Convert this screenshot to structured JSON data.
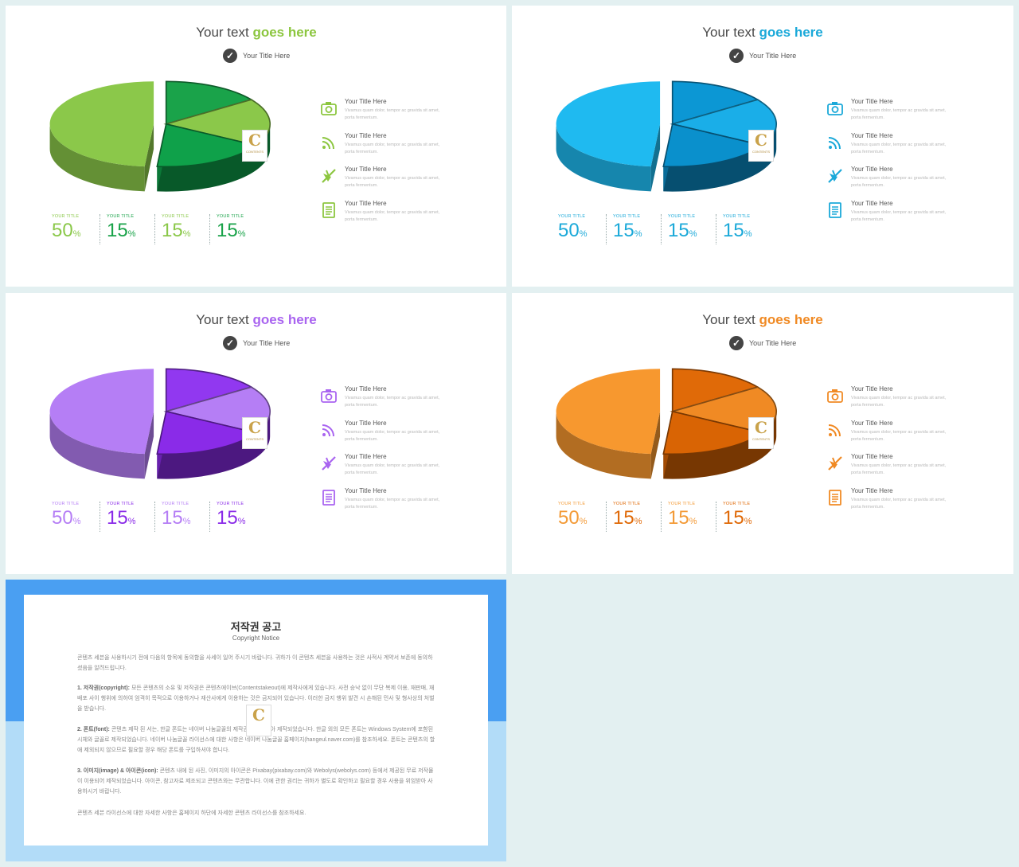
{
  "slides": [
    {
      "title_prefix": "Your text ",
      "title_highlight": "goes here",
      "subtitle": "Your Title Here",
      "accent": "#8cc63f",
      "colors": {
        "big": "#8bc84a",
        "s1": "#1aa34a",
        "s2": "#8bc84a",
        "s3": "#0fa14a"
      },
      "stats": [
        {
          "label": "YOUR TITLE",
          "value": "50",
          "unit": "%",
          "color": "#8bc84a"
        },
        {
          "label": "YOUR TITLE",
          "value": "15",
          "unit": "%",
          "color": "#1aa34a"
        },
        {
          "label": "YOUR TITLE",
          "value": "15",
          "unit": "%",
          "color": "#8bc84a"
        },
        {
          "label": "YOUR TITLE",
          "value": "15",
          "unit": "%",
          "color": "#1aa34a"
        }
      ],
      "items": [
        {
          "icon": "camera-icon",
          "title": "Your Title Here",
          "desc": "Vivamus quam dolor, tempor ac gravida sit amet, porta fermentum."
        },
        {
          "icon": "rss-icon",
          "title": "Your Title Here",
          "desc": "Vivamus quam dolor, tempor ac gravida sit amet, porta fermentum."
        },
        {
          "icon": "plane-icon",
          "title": "Your Title Here",
          "desc": "Vivamus quam dolor, tempor ac gravida sit amet, porta fermentum."
        },
        {
          "icon": "document-icon",
          "title": "Your Title Here",
          "desc": "Vivamus quam dolor, tempor ac gravida sit amet, porta fermentum."
        }
      ]
    },
    {
      "title_prefix": "Your text ",
      "title_highlight": "goes here",
      "subtitle": "Your Title Here",
      "accent": "#1ba9d9",
      "colors": {
        "big": "#1fbaf0",
        "s1": "#0c97d4",
        "s2": "#1aaee8",
        "s3": "#0a90cc"
      },
      "stats": [
        {
          "label": "YOUR TITLE",
          "value": "50",
          "unit": "%",
          "color": "#1ba9d9"
        },
        {
          "label": "YOUR TITLE",
          "value": "15",
          "unit": "%",
          "color": "#1ba9d9"
        },
        {
          "label": "YOUR TITLE",
          "value": "15",
          "unit": "%",
          "color": "#1ba9d9"
        },
        {
          "label": "YOUR TITLE",
          "value": "15",
          "unit": "%",
          "color": "#1ba9d9"
        }
      ],
      "items": [
        {
          "icon": "camera-icon",
          "title": "Your Title Here",
          "desc": "Vivamus quam dolor, tempor ac gravida sit amet, porta fermentum."
        },
        {
          "icon": "rss-icon",
          "title": "Your Title Here",
          "desc": "Vivamus quam dolor, tempor ac gravida sit amet, porta fermentum."
        },
        {
          "icon": "plane-icon",
          "title": "Your Title Here",
          "desc": "Vivamus quam dolor, tempor ac gravida sit amet, porta fermentum."
        },
        {
          "icon": "document-icon",
          "title": "Your Title Here",
          "desc": "Vivamus quam dolor, tempor ac gravida sit amet, porta fermentum."
        }
      ]
    },
    {
      "title_prefix": "Your text ",
      "title_highlight": "goes here",
      "subtitle": "Your Title Here",
      "accent": "#a964f0",
      "colors": {
        "big": "#b57ef5",
        "s1": "#9138f0",
        "s2": "#b57ef5",
        "s3": "#8a2be8"
      },
      "stats": [
        {
          "label": "YOUR TITLE",
          "value": "50",
          "unit": "%",
          "color": "#b57ef5"
        },
        {
          "label": "YOUR TITLE",
          "value": "15",
          "unit": "%",
          "color": "#8a2be8"
        },
        {
          "label": "YOUR TITLE",
          "value": "15",
          "unit": "%",
          "color": "#b57ef5"
        },
        {
          "label": "YOUR TITLE",
          "value": "15",
          "unit": "%",
          "color": "#8a2be8"
        }
      ],
      "items": [
        {
          "icon": "camera-icon",
          "title": "Your Title Here",
          "desc": "Vivamus quam dolor, tempor ac gravida sit amet, porta fermentum."
        },
        {
          "icon": "rss-icon",
          "title": "Your Title Here",
          "desc": "Vivamus quam dolor, tempor ac gravida sit amet, porta fermentum."
        },
        {
          "icon": "plane-icon",
          "title": "Your Title Here",
          "desc": "Vivamus quam dolor, tempor ac gravida sit amet, porta fermentum."
        },
        {
          "icon": "document-icon",
          "title": "Your Title Here",
          "desc": "Vivamus quam dolor, tempor ac gravida sit amet, porta fermentum."
        }
      ]
    },
    {
      "title_prefix": "Your text ",
      "title_highlight": "goes here",
      "subtitle": "Your Title Here",
      "accent": "#f08a24",
      "colors": {
        "big": "#f7982f",
        "s1": "#e06a08",
        "s2": "#f08a24",
        "s3": "#d96404"
      },
      "stats": [
        {
          "label": "YOUR TITLE",
          "value": "50",
          "unit": "%",
          "color": "#f39a36"
        },
        {
          "label": "YOUR TITLE",
          "value": "15",
          "unit": "%",
          "color": "#e06a08"
        },
        {
          "label": "YOUR TITLE",
          "value": "15",
          "unit": "%",
          "color": "#f39a36"
        },
        {
          "label": "YOUR TITLE",
          "value": "15",
          "unit": "%",
          "color": "#e06a08"
        }
      ],
      "items": [
        {
          "icon": "camera-icon",
          "title": "Your Title Here",
          "desc": "Vivamus quam dolor, tempor ac gravida sit amet, porta fermentum."
        },
        {
          "icon": "rss-icon",
          "title": "Your Title Here",
          "desc": "Vivamus quam dolor, tempor ac gravida sit amet, porta fermentum."
        },
        {
          "icon": "plane-icon",
          "title": "Your Title Here",
          "desc": "Vivamus quam dolor, tempor ac gravida sit amet, porta fermentum."
        },
        {
          "icon": "document-icon",
          "title": "Your Title Here",
          "desc": "Vivamus quam dolor, tempor ac gravida sit amet, porta fermentum."
        }
      ]
    }
  ],
  "badge": {
    "letter": "C",
    "text": "CONTENTS"
  },
  "copyright": {
    "title": "저작권 공고",
    "subtitle": "Copyright Notice",
    "intro": "콘텐츠 세븐을 사용하시기 전에 다음의 항목에 동의함을 사세이 일어 주시기 바랍니다. 귀하가 이 콘텐츠 세븐을 사용하는 것은 사적사 계약서 보존에 동의하셨음을 알려드립니다.",
    "p1_head": "1. 저작권(copyright):",
    "p1": " 모든 콘텐츠의 소유 및 저작권은 콘텐츠에이브(Contentstakeout)에 제작사에게 있습니다. 사전 승낙 없이 무단 복제 이용, 재판매, 재배포 사이 행위에 의하여 엄격히 목적으로 이용하거나 재산사에게 이용하는 것은 금지되어 있습니다. 이러한 금지 행위 발견 시 손해된 민사 및 형사상의 처벌을 받습니다.",
    "p2_head": "2. 폰트(font):",
    "p2": " 콘텐츠 제작 된 서는, 한글 폰트는 네이버 나눔글꼴의 제작권을 조어리아 제작되었습니다. 한글 외의 모든 폰트는 Windows System에 포함된 시체와 글꼴로 제작되었습니다. 네이버 나눔글꼴 라이선스에 대한 사항은 네이버 나눔글꼴 홈페이지(hangeul.naver.com)를 참조하세요. 폰트는 콘텐츠의 할애 제외되지 않으므로 필요할 경우 해당 폰트를 구입하셔야 합니다.",
    "p3_head": "3. 이미지(image) & 아이콘(icon):",
    "p3": " 콘텐츠 내에 된 사진, 이미지의 아이콘은 Pixabay(pixabay.com)와 Webolys(webolys.com) 등에서 제공된 무료 저작물이 이용되어 제작되었습니다. 아이콘, 참고자료 제조되고 콘텐츠와는 무관합니다. 이에 관한 권리는 귀하가 별도로 확인하고 필요할 경우 사용을 위임받아 사용하시기 바랍니다.",
    "outro": "콘텐츠 세븐 라이선스에 대한 자세한 사항은 홈페이지 하단에 자세한 콘텐츠 라이선스를 참조하세요."
  }
}
